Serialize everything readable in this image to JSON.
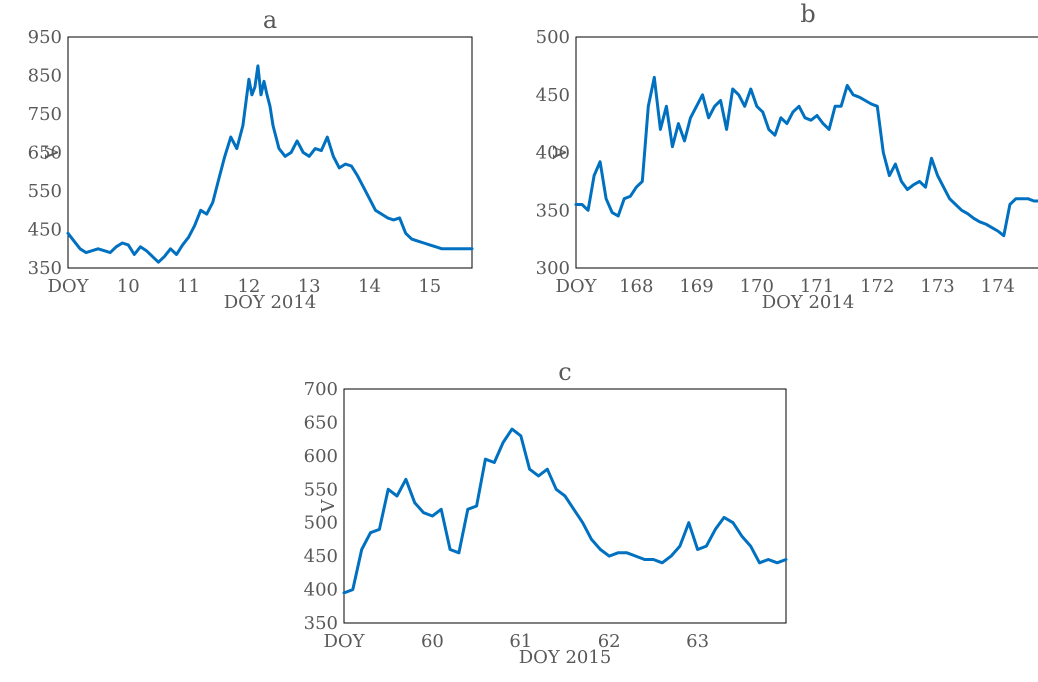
{
  "colors": {
    "series": "#0070C0",
    "text": "#595959",
    "frame": "#000000"
  },
  "chart_data": [
    {
      "type": "line",
      "title": "a",
      "xlabel": "DOY 2014",
      "ylabel": "V",
      "xlim": [
        9,
        15.7
      ],
      "ylim": [
        350,
        950
      ],
      "yticks": [
        350,
        450,
        550,
        650,
        750,
        850,
        950
      ],
      "xticks": [
        {
          "value": 9,
          "label": "DOY"
        },
        {
          "value": 10,
          "label": "10"
        },
        {
          "value": 11,
          "label": "11"
        },
        {
          "value": 12,
          "label": "12"
        },
        {
          "value": 13,
          "label": "13"
        },
        {
          "value": 14,
          "label": "14"
        },
        {
          "value": 15,
          "label": "15"
        }
      ],
      "grid": false,
      "series": [
        {
          "color": "#0070C0",
          "x": [
            9.0,
            9.1,
            9.2,
            9.3,
            9.4,
            9.5,
            9.6,
            9.7,
            9.8,
            9.9,
            10.0,
            10.1,
            10.2,
            10.3,
            10.4,
            10.5,
            10.6,
            10.7,
            10.8,
            10.9,
            11.0,
            11.1,
            11.2,
            11.3,
            11.4,
            11.5,
            11.6,
            11.7,
            11.8,
            11.9,
            12.0,
            12.05,
            12.1,
            12.15,
            12.2,
            12.25,
            12.3,
            12.35,
            12.4,
            12.5,
            12.6,
            12.7,
            12.8,
            12.9,
            13.0,
            13.1,
            13.2,
            13.3,
            13.4,
            13.5,
            13.6,
            13.7,
            13.8,
            13.9,
            14.0,
            14.1,
            14.2,
            14.3,
            14.4,
            14.5,
            14.6,
            14.7,
            14.8,
            14.9,
            15.0,
            15.1,
            15.2,
            15.3,
            15.4,
            15.5,
            15.6,
            15.7
          ],
          "y": [
            440,
            420,
            400,
            390,
            395,
            400,
            395,
            390,
            405,
            415,
            410,
            385,
            405,
            395,
            380,
            365,
            380,
            400,
            385,
            410,
            430,
            460,
            500,
            490,
            520,
            580,
            640,
            690,
            660,
            720,
            840,
            800,
            820,
            875,
            800,
            835,
            800,
            770,
            720,
            660,
            640,
            650,
            680,
            650,
            640,
            660,
            655,
            690,
            640,
            610,
            620,
            615,
            590,
            560,
            530,
            500,
            490,
            480,
            475,
            480,
            440,
            425,
            420,
            415,
            410,
            405,
            400,
            400,
            400,
            400,
            400,
            400
          ]
        }
      ]
    },
    {
      "type": "line",
      "title": "b",
      "xlabel": "DOY 2014",
      "ylabel": "V",
      "xlim": [
        167,
        174.7
      ],
      "ylim": [
        300,
        500
      ],
      "yticks": [
        300,
        350,
        400,
        450,
        500
      ],
      "xticks": [
        {
          "value": 167,
          "label": "DOY"
        },
        {
          "value": 168,
          "label": "168"
        },
        {
          "value": 169,
          "label": "169"
        },
        {
          "value": 170,
          "label": "170"
        },
        {
          "value": 171,
          "label": "171"
        },
        {
          "value": 172,
          "label": "172"
        },
        {
          "value": 173,
          "label": "173"
        },
        {
          "value": 174,
          "label": "174"
        }
      ],
      "grid": false,
      "series": [
        {
          "color": "#0070C0",
          "x": [
            167.0,
            167.1,
            167.2,
            167.3,
            167.4,
            167.5,
            167.6,
            167.7,
            167.8,
            167.9,
            168.0,
            168.1,
            168.2,
            168.3,
            168.4,
            168.5,
            168.6,
            168.7,
            168.8,
            168.9,
            169.0,
            169.1,
            169.2,
            169.3,
            169.4,
            169.5,
            169.6,
            169.7,
            169.8,
            169.9,
            170.0,
            170.1,
            170.2,
            170.3,
            170.4,
            170.5,
            170.6,
            170.7,
            170.8,
            170.9,
            171.0,
            171.1,
            171.2,
            171.3,
            171.4,
            171.5,
            171.6,
            171.7,
            171.8,
            171.9,
            172.0,
            172.1,
            172.2,
            172.3,
            172.4,
            172.5,
            172.6,
            172.7,
            172.8,
            172.9,
            173.0,
            173.1,
            173.2,
            173.3,
            173.4,
            173.5,
            173.6,
            173.7,
            173.8,
            173.9,
            174.0,
            174.1,
            174.2,
            174.3,
            174.4,
            174.5,
            174.6,
            174.7
          ],
          "y": [
            355,
            355,
            350,
            380,
            392,
            360,
            348,
            345,
            360,
            362,
            370,
            375,
            440,
            465,
            420,
            440,
            405,
            425,
            410,
            430,
            440,
            450,
            430,
            440,
            445,
            420,
            455,
            450,
            440,
            455,
            440,
            435,
            420,
            415,
            430,
            425,
            435,
            440,
            430,
            428,
            432,
            425,
            420,
            440,
            440,
            458,
            450,
            448,
            445,
            442,
            440,
            400,
            380,
            390,
            375,
            368,
            372,
            375,
            370,
            395,
            380,
            370,
            360,
            355,
            350,
            347,
            343,
            340,
            338,
            335,
            332,
            328,
            355,
            360,
            360,
            360,
            358,
            358
          ]
        }
      ]
    },
    {
      "type": "line",
      "title": "c",
      "xlabel": "DOY 2015",
      "ylabel": "V",
      "xlim": [
        59,
        64
      ],
      "ylim": [
        350,
        700
      ],
      "yticks": [
        350,
        400,
        450,
        500,
        550,
        600,
        650,
        700
      ],
      "xticks": [
        {
          "value": 59,
          "label": "DOY"
        },
        {
          "value": 60,
          "label": "60"
        },
        {
          "value": 61,
          "label": "61"
        },
        {
          "value": 62,
          "label": "62"
        },
        {
          "value": 63,
          "label": "63"
        }
      ],
      "grid": false,
      "series": [
        {
          "color": "#0070C0",
          "x": [
            59.0,
            59.1,
            59.2,
            59.3,
            59.4,
            59.5,
            59.6,
            59.7,
            59.8,
            59.9,
            60.0,
            60.1,
            60.2,
            60.3,
            60.4,
            60.5,
            60.6,
            60.7,
            60.8,
            60.9,
            61.0,
            61.1,
            61.2,
            61.3,
            61.4,
            61.5,
            61.6,
            61.7,
            61.8,
            61.9,
            62.0,
            62.1,
            62.2,
            62.3,
            62.4,
            62.5,
            62.6,
            62.7,
            62.8,
            62.9,
            63.0,
            63.1,
            63.2,
            63.3,
            63.4,
            63.5,
            63.6,
            63.7,
            63.8,
            63.9,
            64.0
          ],
          "y": [
            395,
            400,
            460,
            485,
            490,
            550,
            540,
            565,
            530,
            515,
            510,
            520,
            460,
            455,
            520,
            525,
            595,
            590,
            620,
            640,
            630,
            580,
            570,
            580,
            550,
            540,
            520,
            500,
            475,
            460,
            450,
            455,
            455,
            450,
            445,
            445,
            440,
            450,
            465,
            500,
            460,
            465,
            490,
            508,
            500,
            480,
            465,
            440,
            445,
            440,
            445
          ]
        }
      ]
    }
  ]
}
